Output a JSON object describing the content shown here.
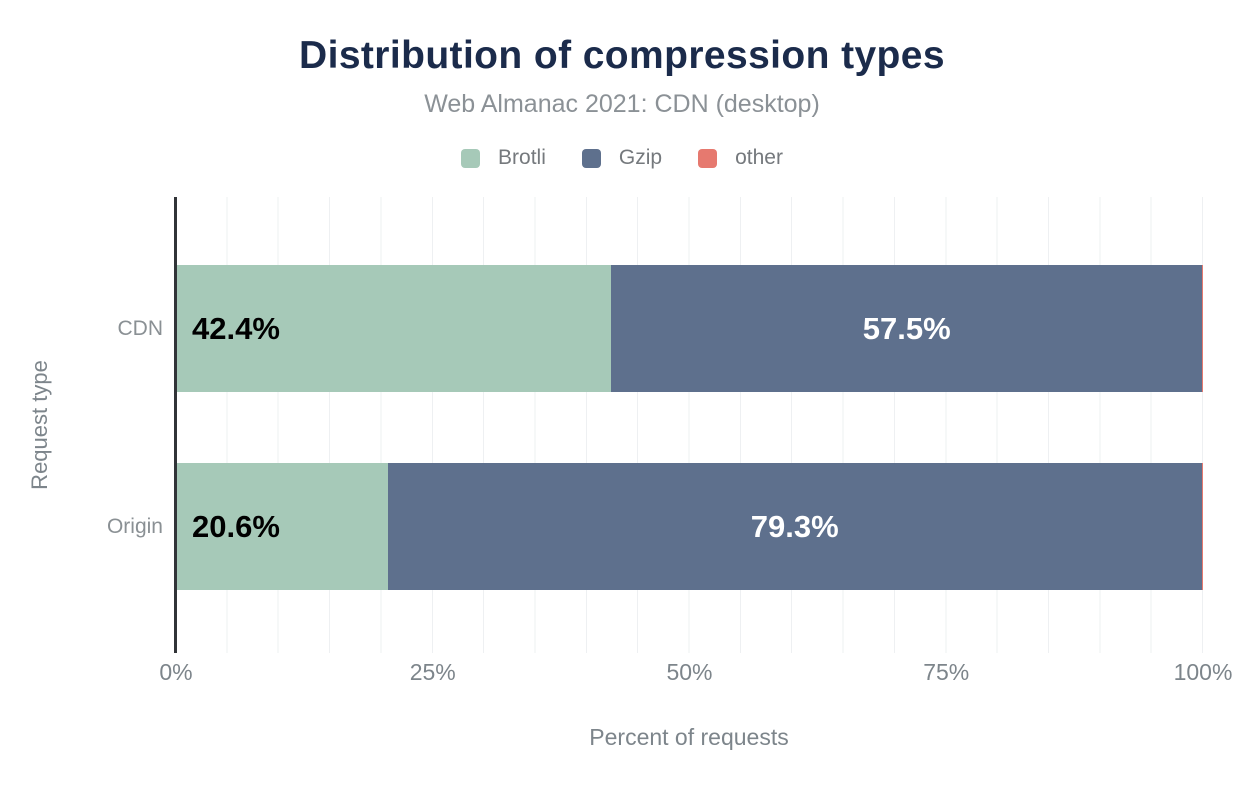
{
  "header": {
    "title": "Distribution of compression types",
    "subtitle": "Web Almanac 2021: CDN (desktop)"
  },
  "chart_data": {
    "type": "bar",
    "orientation": "horizontal",
    "stacked": true,
    "title": "Distribution of compression types",
    "subtitle": "Web Almanac 2021: CDN (desktop)",
    "xlabel": "Percent of requests",
    "ylabel": "Request type",
    "categories": [
      "CDN",
      "Origin"
    ],
    "series": [
      {
        "name": "Brotli",
        "color": "#a6c9b8",
        "values": [
          42.4,
          20.6
        ]
      },
      {
        "name": "Gzip",
        "color": "#5e708d",
        "values": [
          57.5,
          79.3
        ]
      },
      {
        "name": "other",
        "color": "#e6796f",
        "values": [
          0.1,
          0.1
        ]
      }
    ],
    "bar_labels": [
      [
        "42.4%",
        "57.5%",
        ""
      ],
      [
        "20.6%",
        "79.3%",
        ""
      ]
    ],
    "x_ticks": [
      "0%",
      "25%",
      "50%",
      "75%",
      "100%"
    ],
    "xlim": [
      0,
      100
    ],
    "grid": "vertical every 5%",
    "legend_position": "top",
    "colors": {
      "title": "#1b2b4b",
      "axis_line": "#313438",
      "gridline": "#eef0f2",
      "tick_text": "#7d858b",
      "label_on_brotli": "#000000",
      "label_on_gzip": "#ffffff"
    }
  }
}
